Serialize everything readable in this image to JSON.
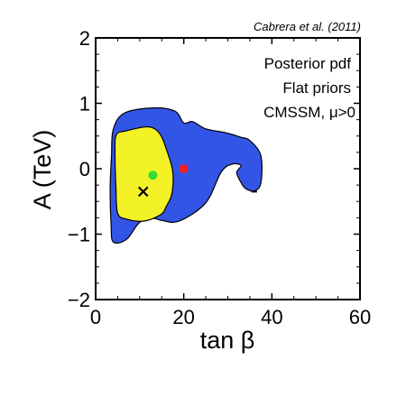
{
  "chart_data": {
    "type": "contour",
    "credit": "Cabrera et al. (2011)",
    "xlabel": "tan β",
    "ylabel": "A (TeV)",
    "xlim": [
      0,
      60
    ],
    "ylim": [
      -2,
      2
    ],
    "xticks": [
      "0",
      "20",
      "40",
      "60"
    ],
    "yticks": [
      "−2",
      "−1",
      "0",
      "1",
      "2"
    ],
    "legend_lines": [
      "Posterior pdf",
      "Flat priors",
      "CMSSM, μ>0"
    ],
    "legend_placement": "top-right",
    "regions": [
      {
        "name": "outer-region",
        "color": "#3355e6",
        "outline": [
          [
            3.6,
            0.2
          ],
          [
            4.0,
            0.6
          ],
          [
            6.5,
            0.85
          ],
          [
            13,
            0.93
          ],
          [
            18,
            0.88
          ],
          [
            20,
            0.7
          ],
          [
            22,
            0.72
          ],
          [
            25,
            0.61
          ],
          [
            29.5,
            0.55
          ],
          [
            33,
            0.48
          ],
          [
            35,
            0.43
          ],
          [
            37.5,
            0.2
          ],
          [
            37.5,
            -0.22
          ],
          [
            36,
            -0.34
          ],
          [
            34,
            -0.3
          ],
          [
            33,
            -0.21
          ],
          [
            32,
            -0.06
          ],
          [
            33,
            0.05
          ],
          [
            31,
            0.07
          ],
          [
            28.5,
            -0.05
          ],
          [
            25,
            -0.52
          ],
          [
            19,
            -0.8
          ],
          [
            15,
            -0.79
          ],
          [
            13,
            -0.76
          ],
          [
            10,
            -0.82
          ],
          [
            7,
            -1.08
          ],
          [
            4,
            -1.12
          ],
          [
            3.5,
            -0.85
          ],
          [
            3.3,
            -0.3
          ]
        ]
      },
      {
        "name": "inner-region",
        "color": "#f2f226",
        "outline": [
          [
            4.4,
            0.25
          ],
          [
            4.7,
            0.52
          ],
          [
            7,
            0.58
          ],
          [
            12,
            0.64
          ],
          [
            14.6,
            0.53
          ],
          [
            16.3,
            0.25
          ],
          [
            17.5,
            -0.05
          ],
          [
            17.3,
            -0.38
          ],
          [
            16,
            -0.58
          ],
          [
            14.8,
            -0.7
          ],
          [
            11,
            -0.8
          ],
          [
            7,
            -0.77
          ],
          [
            5,
            -0.68
          ],
          [
            4.6,
            -0.3
          ]
        ]
      }
    ],
    "points": [
      {
        "name": "green-dot",
        "x": 13,
        "y": -0.1,
        "color": "#33dd33",
        "marker": "circle"
      },
      {
        "name": "red-dot",
        "x": 20,
        "y": 0.0,
        "color": "#ee2222",
        "marker": "circle"
      },
      {
        "name": "black-cross",
        "x": 10.8,
        "y": -0.35,
        "color": "#000000",
        "marker": "x"
      }
    ],
    "tick_marks": [
      {
        "name": "black-dash",
        "x": 36,
        "y": -0.35
      }
    ]
  }
}
